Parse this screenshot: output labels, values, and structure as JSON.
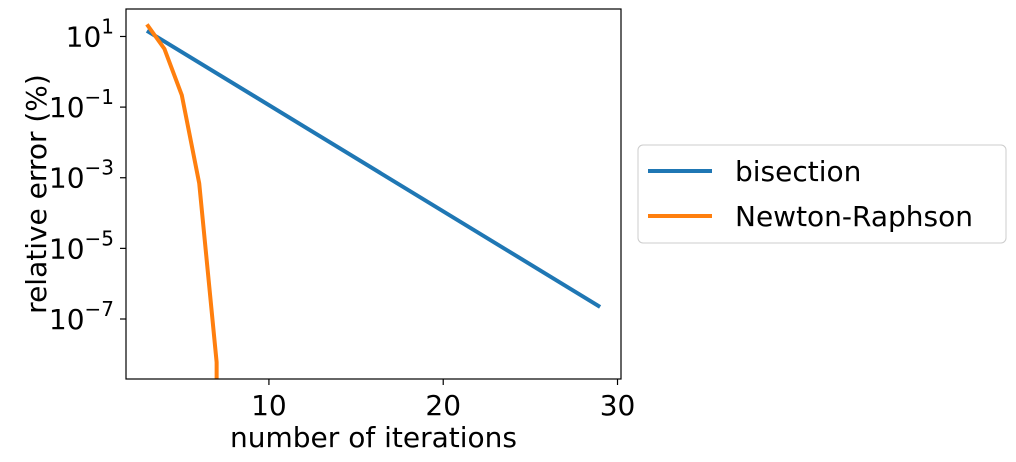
{
  "chart_data": {
    "type": "line",
    "xlabel": "number of iterations",
    "ylabel": "relative error (%)",
    "yscale": "log",
    "xlim": [
      1.8,
      30.2
    ],
    "ylim": [
      2e-09,
      60
    ],
    "xticks": [
      10,
      20,
      30
    ],
    "yticks": [
      {
        "value": 10,
        "base": "10",
        "exp": "1"
      },
      {
        "value": 0.1,
        "base": "10",
        "exp": "−1"
      },
      {
        "value": 0.001,
        "base": "10",
        "exp": "−3"
      },
      {
        "value": 1e-05,
        "base": "10",
        "exp": "−5"
      },
      {
        "value": 1e-07,
        "base": "10",
        "exp": "−7"
      }
    ],
    "grid": false,
    "legend_position": "outside-right",
    "series": [
      {
        "name": "bisection",
        "color": "#1f77b4",
        "x": [
          3,
          29
        ],
        "y": [
          14.5,
          2.2e-07
        ]
      },
      {
        "name": "Newton-Raphson",
        "color": "#ff7f0e",
        "x": [
          3,
          4,
          5,
          6,
          7,
          7
        ],
        "y": [
          22,
          4.5,
          0.22,
          0.0007,
          6e-09,
          1e-09
        ]
      }
    ]
  }
}
